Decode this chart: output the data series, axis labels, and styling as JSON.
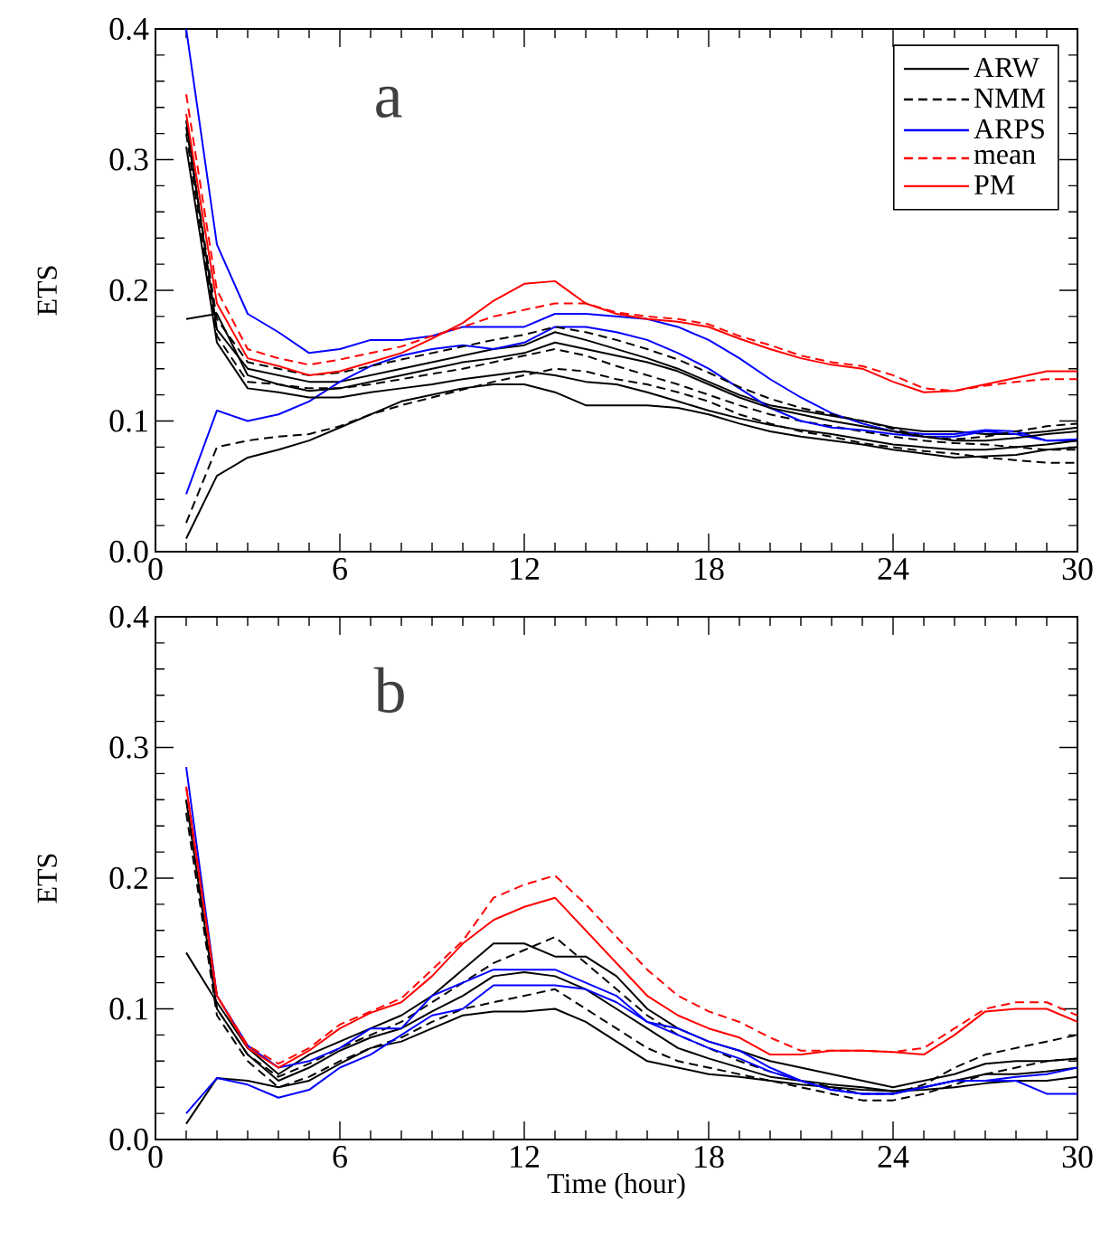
{
  "chart_data": [
    {
      "type": "line",
      "ylabel": "ETS",
      "annotations": [
        "a"
      ],
      "legend": "top right",
      "xlim": [
        0,
        30
      ],
      "ylim": [
        0,
        0.4
      ],
      "xticks": [
        0,
        6,
        12,
        18,
        24,
        30
      ],
      "yticks": [
        {
          "value": 0,
          "label": "0.0"
        },
        {
          "value": 0.1,
          "label": "0.1"
        },
        {
          "value": 0.2,
          "label": "0.2"
        },
        {
          "value": 0.3,
          "label": "0.3"
        },
        {
          "value": 0.4,
          "label": "0.4"
        }
      ],
      "x": [
        1,
        2,
        3,
        4,
        5,
        6,
        7,
        8,
        9,
        10,
        11,
        12,
        13,
        14,
        15,
        16,
        17,
        18,
        19,
        20,
        21,
        22,
        23,
        24,
        25,
        26,
        27,
        28,
        29,
        30
      ],
      "series": [
        {
          "name": "ARW",
          "color": "#000000",
          "line_style": "solid",
          "values": [
            0.33,
            0.17,
            0.14,
            0.135,
            0.13,
            0.13,
            0.135,
            0.14,
            0.145,
            0.15,
            0.155,
            0.158,
            0.168,
            0.162,
            0.155,
            0.148,
            0.14,
            0.13,
            0.12,
            0.112,
            0.108,
            0.104,
            0.1,
            0.095,
            0.092,
            0.092,
            0.09,
            0.09,
            0.092,
            0.095
          ]
        },
        {
          "name": "NMM",
          "color": "#000000",
          "line_style": "dashed",
          "values": [
            0.32,
            0.165,
            0.13,
            0.128,
            0.125,
            0.125,
            0.128,
            0.132,
            0.136,
            0.14,
            0.145,
            0.15,
            0.155,
            0.15,
            0.142,
            0.135,
            0.128,
            0.12,
            0.112,
            0.105,
            0.1,
            0.096,
            0.092,
            0.088,
            0.085,
            0.083,
            0.082,
            0.08,
            0.078,
            0.078
          ]
        },
        {
          "name": "ARPS",
          "color": "#0000ff",
          "line_style": "solid",
          "values": [
            0.4,
            0.235,
            0.182,
            0.168,
            0.152,
            0.155,
            0.162,
            0.162,
            0.165,
            0.172,
            0.172,
            0.172,
            0.182,
            0.182,
            0.18,
            0.178,
            0.172,
            0.162,
            0.148,
            0.132,
            0.118,
            0.106,
            0.098,
            0.092,
            0.09,
            0.09,
            0.093,
            0.092,
            0.085,
            0.086
          ]
        },
        {
          "color": "#0000ff",
          "line_style": "solid",
          "values": [
            0.044,
            0.108,
            0.1,
            0.105,
            0.115,
            0.13,
            0.142,
            0.15,
            0.155,
            0.158,
            0.155,
            0.16,
            0.172,
            0.172,
            0.168,
            0.162,
            0.152,
            0.14,
            0.125,
            0.11,
            0.1,
            0.095,
            0.093,
            0.09,
            0.088,
            0.088,
            0.092,
            0.09,
            0.085,
            0.085
          ]
        },
        {
          "color": "#000000",
          "line_style": "solid",
          "values": [
            0.01,
            0.058,
            0.072,
            0.078,
            0.085,
            0.095,
            0.105,
            0.115,
            0.12,
            0.125,
            0.128,
            0.128,
            0.122,
            0.112,
            0.112,
            0.112,
            0.11,
            0.105,
            0.098,
            0.092,
            0.088,
            0.085,
            0.082,
            0.078,
            0.075,
            0.072,
            0.073,
            0.074,
            0.078,
            0.08
          ]
        },
        {
          "color": "#000000",
          "line_style": "dashed",
          "values": [
            0.022,
            0.08,
            0.085,
            0.088,
            0.09,
            0.096,
            0.105,
            0.112,
            0.118,
            0.124,
            0.13,
            0.135,
            0.14,
            0.138,
            0.132,
            0.128,
            0.122,
            0.115,
            0.105,
            0.098,
            0.092,
            0.088,
            0.083,
            0.08,
            0.077,
            0.075,
            0.072,
            0.07,
            0.068,
            0.068
          ]
        },
        {
          "color": "#000000",
          "line_style": "solid",
          "values": [
            0.31,
            0.16,
            0.125,
            0.122,
            0.118,
            0.118,
            0.122,
            0.125,
            0.128,
            0.132,
            0.135,
            0.138,
            0.135,
            0.13,
            0.128,
            0.122,
            0.115,
            0.108,
            0.102,
            0.097,
            0.093,
            0.09,
            0.086,
            0.082,
            0.08,
            0.078,
            0.078,
            0.08,
            0.082,
            0.085
          ]
        },
        {
          "color": "#000000",
          "line_style": "solid",
          "values": [
            0.178,
            0.182,
            0.135,
            0.128,
            0.123,
            0.125,
            0.13,
            0.135,
            0.14,
            0.145,
            0.148,
            0.152,
            0.16,
            0.155,
            0.15,
            0.145,
            0.138,
            0.128,
            0.118,
            0.11,
            0.105,
            0.1,
            0.096,
            0.092,
            0.088,
            0.085,
            0.085,
            0.087,
            0.09,
            0.092
          ]
        },
        {
          "color": "#000000",
          "line_style": "dashed",
          "values": [
            0.325,
            0.178,
            0.145,
            0.14,
            0.135,
            0.137,
            0.142,
            0.147,
            0.152,
            0.157,
            0.162,
            0.166,
            0.172,
            0.168,
            0.162,
            0.155,
            0.147,
            0.137,
            0.126,
            0.117,
            0.11,
            0.105,
            0.1,
            0.094,
            0.088,
            0.086,
            0.088,
            0.092,
            0.096,
            0.098
          ]
        },
        {
          "name": "mean",
          "color": "#ff0000",
          "line_style": "dashed",
          "values": [
            0.35,
            0.2,
            0.155,
            0.148,
            0.143,
            0.147,
            0.152,
            0.157,
            0.165,
            0.172,
            0.18,
            0.185,
            0.19,
            0.19,
            0.183,
            0.18,
            0.178,
            0.174,
            0.165,
            0.158,
            0.15,
            0.145,
            0.142,
            0.135,
            0.125,
            0.123,
            0.127,
            0.13,
            0.132,
            0.132
          ]
        },
        {
          "name": "PM",
          "color": "#ff0000",
          "line_style": "solid",
          "values": [
            0.335,
            0.19,
            0.148,
            0.142,
            0.135,
            0.138,
            0.145,
            0.152,
            0.163,
            0.175,
            0.192,
            0.205,
            0.207,
            0.19,
            0.182,
            0.178,
            0.176,
            0.172,
            0.163,
            0.155,
            0.148,
            0.143,
            0.14,
            0.13,
            0.122,
            0.123,
            0.128,
            0.133,
            0.138,
            0.138
          ]
        }
      ]
    },
    {
      "type": "line",
      "ylabel": "ETS",
      "xlabel": "Time (hour)",
      "annotations": [
        "b"
      ],
      "xlim": [
        0,
        30
      ],
      "ylim": [
        0,
        0.4
      ],
      "xticks": [
        0,
        6,
        12,
        18,
        24,
        30
      ],
      "yticks": [
        {
          "value": 0,
          "label": "0.0"
        },
        {
          "value": 0.1,
          "label": "0.1"
        },
        {
          "value": 0.2,
          "label": "0.2"
        },
        {
          "value": 0.3,
          "label": "0.3"
        },
        {
          "value": 0.4,
          "label": "0.4"
        }
      ],
      "x": [
        1,
        2,
        3,
        4,
        5,
        6,
        7,
        8,
        9,
        10,
        11,
        12,
        13,
        14,
        15,
        16,
        17,
        18,
        19,
        20,
        21,
        22,
        23,
        24,
        25,
        26,
        27,
        28,
        29,
        30
      ],
      "series": [
        {
          "color": "#000000",
          "line_style": "solid",
          "values": [
            0.012,
            0.047,
            0.045,
            0.04,
            0.045,
            0.058,
            0.07,
            0.075,
            0.085,
            0.095,
            0.098,
            0.098,
            0.1,
            0.09,
            0.075,
            0.06,
            0.055,
            0.05,
            0.048,
            0.045,
            0.042,
            0.04,
            0.038,
            0.037,
            0.038,
            0.04,
            0.043,
            0.045,
            0.045,
            0.048
          ]
        },
        {
          "color": "#000000",
          "line_style": "solid",
          "values": [
            0.143,
            0.105,
            0.07,
            0.05,
            0.065,
            0.075,
            0.085,
            0.095,
            0.11,
            0.13,
            0.15,
            0.15,
            0.14,
            0.14,
            0.125,
            0.1,
            0.085,
            0.075,
            0.068,
            0.06,
            0.055,
            0.05,
            0.045,
            0.04,
            0.045,
            0.05,
            0.058,
            0.06,
            0.06,
            0.062
          ]
        },
        {
          "color": "#000000",
          "line_style": "solid",
          "values": [
            0.26,
            0.1,
            0.065,
            0.045,
            0.055,
            0.068,
            0.078,
            0.085,
            0.098,
            0.11,
            0.125,
            0.128,
            0.125,
            0.115,
            0.1,
            0.085,
            0.07,
            0.062,
            0.055,
            0.048,
            0.045,
            0.042,
            0.04,
            0.037,
            0.04,
            0.045,
            0.05,
            0.05,
            0.052,
            0.055
          ]
        },
        {
          "color": "#000000",
          "line_style": "dashed",
          "values": [
            0.25,
            0.095,
            0.06,
            0.04,
            0.048,
            0.06,
            0.07,
            0.078,
            0.09,
            0.1,
            0.105,
            0.11,
            0.115,
            0.1,
            0.085,
            0.07,
            0.06,
            0.055,
            0.05,
            0.045,
            0.04,
            0.035,
            0.03,
            0.03,
            0.035,
            0.042,
            0.05,
            0.055,
            0.06,
            0.062
          ]
        },
        {
          "color": "#000000",
          "line_style": "dashed",
          "values": [
            0.26,
            0.1,
            0.065,
            0.048,
            0.058,
            0.07,
            0.08,
            0.09,
            0.105,
            0.12,
            0.135,
            0.145,
            0.155,
            0.135,
            0.115,
            0.095,
            0.08,
            0.07,
            0.06,
            0.052,
            0.045,
            0.04,
            0.035,
            0.035,
            0.042,
            0.055,
            0.065,
            0.07,
            0.075,
            0.08
          ]
        },
        {
          "color": "#0000ff",
          "line_style": "solid",
          "values": [
            0.285,
            0.11,
            0.072,
            0.055,
            0.06,
            0.07,
            0.085,
            0.085,
            0.11,
            0.12,
            0.13,
            0.13,
            0.13,
            0.12,
            0.11,
            0.09,
            0.085,
            0.075,
            0.068,
            0.055,
            0.045,
            0.038,
            0.035,
            0.035,
            0.04,
            0.045,
            0.045,
            0.045,
            0.035,
            0.035
          ]
        },
        {
          "color": "#0000ff",
          "line_style": "solid",
          "values": [
            0.02,
            0.047,
            0.042,
            0.032,
            0.038,
            0.055,
            0.065,
            0.08,
            0.095,
            0.1,
            0.118,
            0.118,
            0.118,
            0.115,
            0.105,
            0.09,
            0.08,
            0.07,
            0.062,
            0.052,
            0.045,
            0.038,
            0.035,
            0.035,
            0.04,
            0.045,
            0.045,
            0.048,
            0.05,
            0.055
          ]
        },
        {
          "color": "#ff0000",
          "line_style": "dashed",
          "values": [
            0.27,
            0.11,
            0.072,
            0.058,
            0.07,
            0.088,
            0.098,
            0.108,
            0.13,
            0.152,
            0.185,
            0.195,
            0.202,
            0.18,
            0.155,
            0.13,
            0.11,
            0.098,
            0.09,
            0.078,
            0.068,
            0.068,
            0.068,
            0.067,
            0.07,
            0.085,
            0.1,
            0.105,
            0.105,
            0.095
          ]
        },
        {
          "color": "#ff0000",
          "line_style": "solid",
          "values": [
            0.27,
            0.11,
            0.07,
            0.055,
            0.068,
            0.085,
            0.097,
            0.105,
            0.125,
            0.15,
            0.168,
            0.178,
            0.185,
            0.16,
            0.135,
            0.11,
            0.095,
            0.085,
            0.078,
            0.065,
            0.065,
            0.068,
            0.068,
            0.067,
            0.065,
            0.08,
            0.098,
            0.1,
            0.1,
            0.09
          ]
        }
      ]
    }
  ]
}
